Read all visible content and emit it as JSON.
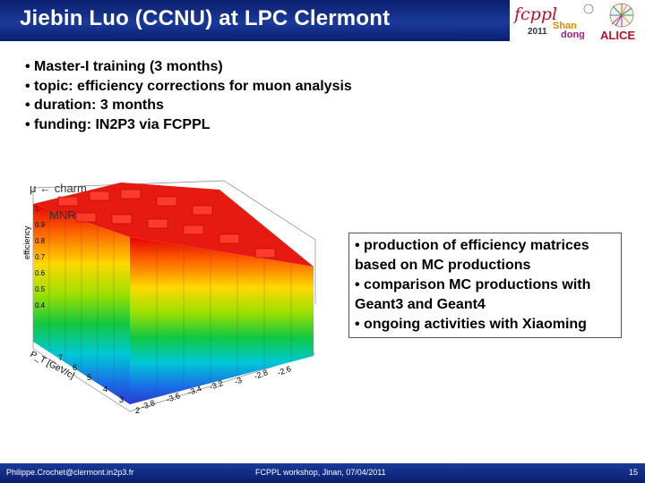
{
  "header": {
    "title": "Jiebin Luo (CCNU) at LPC Clermont"
  },
  "logos": {
    "fcppl_text": "fcppl",
    "fcppl_year": "2011",
    "fcppl_city_top": "Shan",
    "fcppl_city_bottom": "dong",
    "alice_text": "ALICE"
  },
  "bullets": [
    "• Master-I training (3 months)",
    "• topic: efficiency corrections for muon analysis",
    "• duration: 3 months",
    "• funding: IN2P3 via FCPPL"
  ],
  "plot": {
    "label_top_left": "μ ← charm",
    "label_mnr": "MNR",
    "z_axis": "efficiency",
    "x_axis": "P_T [GeV/c]",
    "pt_ticks": [
      "2",
      "3",
      "4",
      "5",
      "6",
      "7"
    ],
    "eta_ticks": [
      "-3.8",
      "-3.6",
      "-3.4",
      "-3.2",
      "-3",
      "-2.8",
      "-2.6"
    ],
    "z_ticks": [
      "1",
      "0.9",
      "0.8",
      "0.7",
      "0.6",
      "0.5",
      "0.4"
    ]
  },
  "callout": [
    "• production of efficiency matrices based on MC productions",
    "• comparison MC productions with Geant3 and Geant4",
    "• ongoing activities with Xiaoming"
  ],
  "footer": {
    "email": "Philippe.Crochet@clermont.in2p3.fr",
    "event": "FCPPL workshop, Jinan, 07/04/2011",
    "page": "15"
  }
}
